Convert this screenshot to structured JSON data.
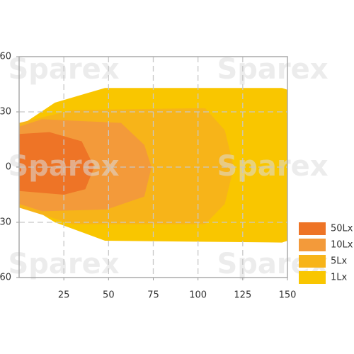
{
  "chart_data": {
    "type": "area",
    "watermark": "Sparex",
    "xlim": [
      0,
      150
    ],
    "xticks": [
      25,
      50,
      75,
      100,
      125,
      150
    ],
    "ylim": [
      -60,
      60
    ],
    "yticks": [
      {
        "value": -60,
        "label": "60"
      },
      {
        "value": -30,
        "label": "30"
      },
      0,
      30,
      60
    ],
    "grid": true,
    "legend": "lower right",
    "series": [
      {
        "name": "50Lx",
        "color": "#ee7426",
        "x": [
          0,
          17,
          35,
          42,
          37,
          25,
          0
        ],
        "y": [
          18,
          19,
          14,
          0,
          -12,
          -15,
          -13
        ]
      },
      {
        "name": "10Lx",
        "color": "#f39a3a",
        "x": [
          0,
          13,
          57,
          70,
          74,
          70,
          49,
          13,
          0
        ],
        "y": [
          22,
          26,
          24,
          12,
          0,
          -16,
          -23,
          -24,
          -20
        ]
      },
      {
        "name": "5Lx",
        "color": "#f7b419",
        "x": [
          0,
          30,
          104,
          115,
          120,
          115,
          104,
          30,
          0
        ],
        "y": [
          24,
          31,
          32,
          20,
          0,
          -20,
          -31,
          -31,
          -22
        ]
      },
      {
        "name": "1Lx",
        "color": "#f9c600",
        "x": [
          0,
          20,
          48,
          147,
          150,
          150,
          147,
          48,
          20,
          0
        ],
        "y": [
          22,
          35,
          43,
          43,
          42,
          -40,
          -41,
          -40,
          -30,
          -18
        ]
      }
    ]
  }
}
